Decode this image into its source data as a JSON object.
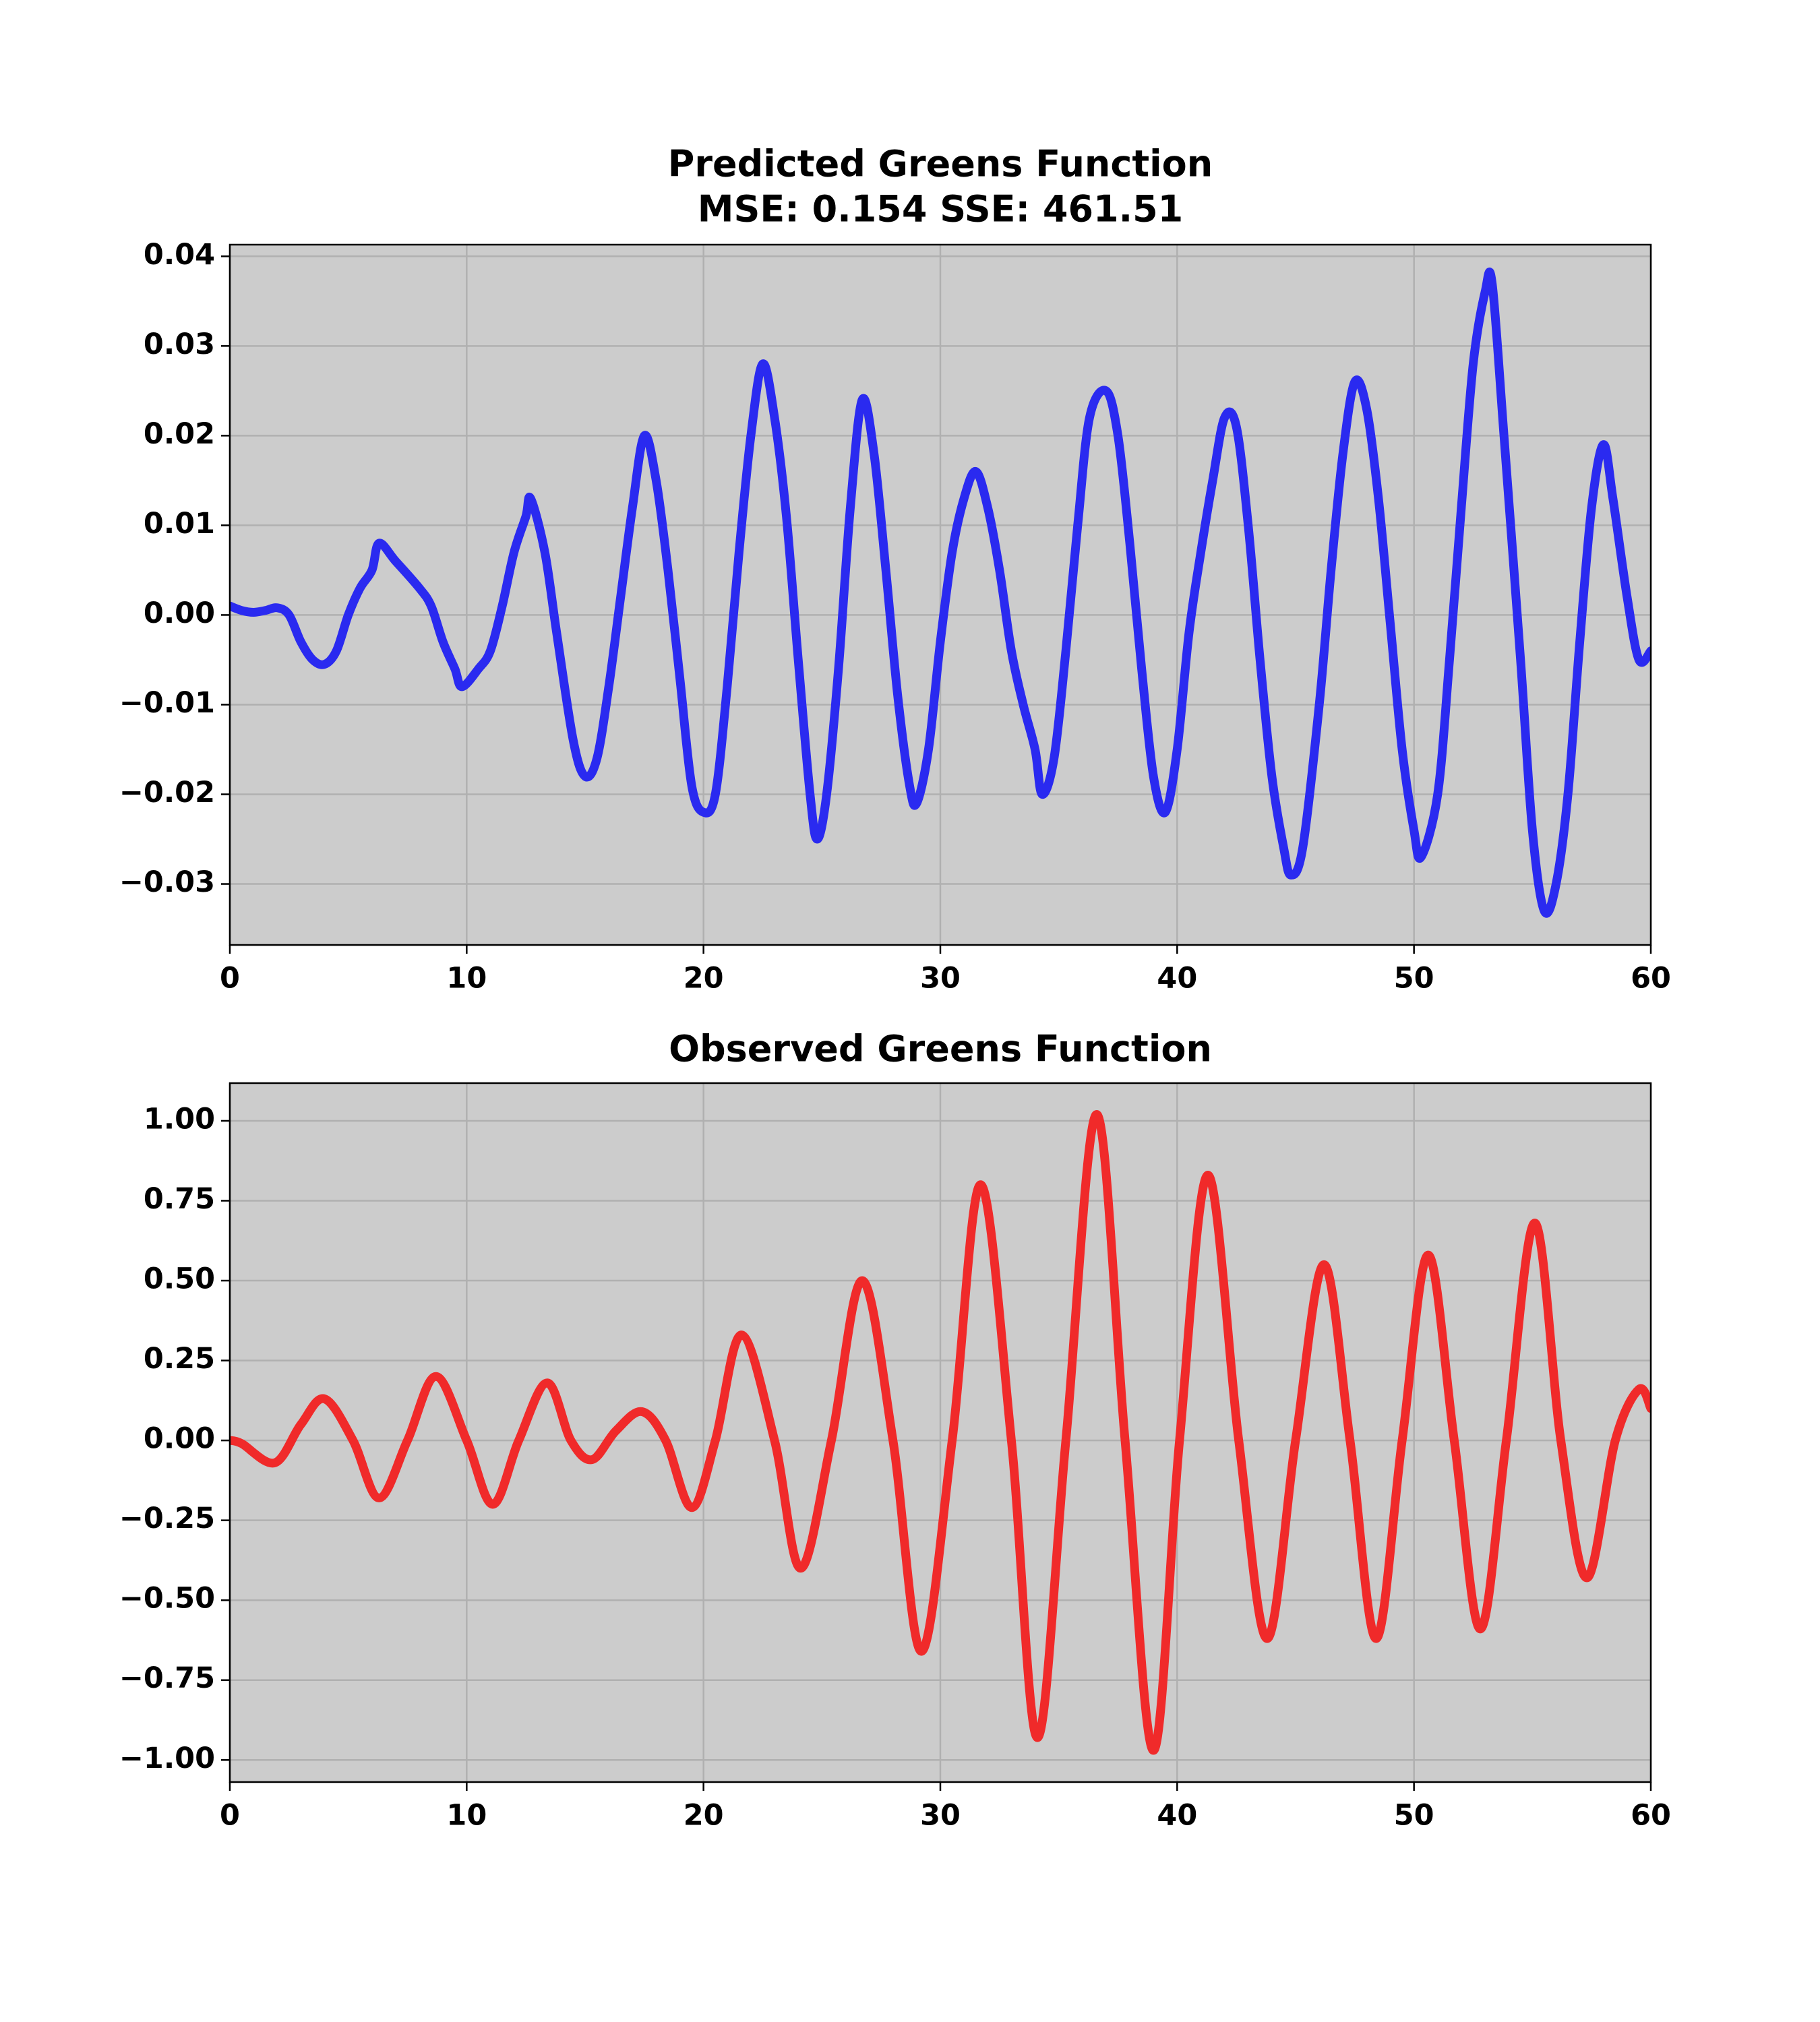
{
  "chart_data": [
    {
      "type": "line",
      "title": "Predicted Greens Function",
      "subtitle": "MSE: 0.154 SSE: 461.51",
      "x": [
        0,
        0.5,
        1,
        1.5,
        2,
        2.5,
        3,
        3.5,
        4,
        4.5,
        5,
        5.5,
        6,
        6.3,
        7,
        8,
        8.5,
        9,
        9.5,
        9.8,
        10.5,
        11,
        11.5,
        12,
        12.5,
        12.7,
        13.3,
        13.8,
        14.5,
        15,
        15.5,
        16,
        16.5,
        17,
        17.5,
        18,
        18.5,
        19,
        19.5,
        20,
        20.5,
        21,
        21.5,
        22,
        22.5,
        23,
        23.5,
        24,
        24.5,
        24.8,
        25.2,
        25.7,
        26.2,
        26.7,
        27.2,
        27.7,
        28.2,
        28.7,
        29,
        29.5,
        30,
        30.5,
        31,
        31.5,
        32,
        32.5,
        33,
        33.5,
        34,
        34.3,
        34.8,
        35.3,
        35.8,
        36.3,
        37,
        37.5,
        38,
        38.5,
        39,
        39.5,
        40,
        40.5,
        41,
        41.5,
        42,
        42.5,
        43,
        43.5,
        44,
        44.5,
        44.8,
        45.3,
        46,
        46.5,
        47,
        47.5,
        48,
        48.5,
        49,
        49.5,
        50,
        50.3,
        51,
        51.5,
        52,
        52.5,
        53,
        53.3,
        53.8,
        54.5,
        55,
        55.5,
        56,
        56.5,
        57,
        57.5,
        58,
        58.4,
        59,
        59.5,
        60
      ],
      "series": [
        {
          "name": "Predicted",
          "color": "#2a2af0",
          "values": [
            0.001,
            0.0005,
            0.0003,
            0.0005,
            0.0008,
            0,
            -0.003,
            -0.005,
            -0.0055,
            -0.004,
            0,
            0.003,
            0.005,
            0.008,
            0.006,
            0.003,
            0.001,
            -0.003,
            -0.006,
            -0.008,
            -0.006,
            -0.004,
            0.001,
            0.007,
            0.011,
            0.013,
            0.007,
            -0.002,
            -0.014,
            -0.018,
            -0.016,
            -0.008,
            0.002,
            0.012,
            0.02,
            0.015,
            0.005,
            -0.007,
            -0.019,
            -0.022,
            -0.02,
            -0.008,
            0.007,
            0.02,
            0.028,
            0.022,
            0.011,
            -0.005,
            -0.02,
            -0.025,
            -0.02,
            -0.006,
            0.012,
            0.024,
            0.018,
            0.005,
            -0.009,
            -0.019,
            -0.021,
            -0.015,
            -0.003,
            0.007,
            0.013,
            0.016,
            0.012,
            0.005,
            -0.004,
            -0.01,
            -0.015,
            -0.02,
            -0.016,
            -0.004,
            0.01,
            0.022,
            0.025,
            0.02,
            0.008,
            -0.006,
            -0.018,
            -0.022,
            -0.015,
            -0.002,
            0.007,
            0.015,
            0.022,
            0.021,
            0.01,
            -0.005,
            -0.018,
            -0.026,
            -0.029,
            -0.026,
            -0.01,
            0.005,
            0.018,
            0.026,
            0.023,
            0.013,
            -0.001,
            -0.015,
            -0.024,
            -0.027,
            -0.02,
            -0.005,
            0.012,
            0.028,
            0.036,
            0.037,
            0.02,
            -0.005,
            -0.024,
            -0.033,
            -0.03,
            -0.02,
            -0.003,
            0.012,
            0.019,
            0.013,
            0.002,
            -0.005,
            -0.004
          ]
        }
      ],
      "xlim": [
        0,
        60
      ],
      "xticks": [
        0,
        10,
        20,
        30,
        40,
        50,
        60
      ],
      "ylim": [
        -0.0368,
        0.0413
      ],
      "yticks": [
        {
          "value": -0.03,
          "label": "−0.03"
        },
        {
          "value": -0.02,
          "label": "−0.02"
        },
        {
          "value": -0.01,
          "label": "−0.01"
        },
        {
          "value": 0,
          "label": "0.00"
        },
        0.01,
        0.02,
        0.03,
        0.04
      ],
      "grid": true
    },
    {
      "type": "line",
      "title": "Observed Greens Function",
      "x": [
        0,
        0.5,
        1.9,
        3,
        4,
        5.2,
        6.3,
        7.5,
        8.7,
        10,
        11.1,
        12.2,
        13.4,
        14.4,
        15.3,
        16.3,
        17.4,
        18.4,
        19.5,
        20.5,
        21.6,
        23,
        24.1,
        25.4,
        26.7,
        28,
        29.2,
        30.5,
        31.7,
        33,
        34.1,
        35.3,
        36.6,
        37.8,
        39,
        40.1,
        41.3,
        42.6,
        43.8,
        45,
        46.2,
        47.3,
        48.4,
        49.5,
        50.6,
        51.7,
        52.8,
        53.9,
        55.1,
        56.2,
        57.3,
        58.5,
        59.5,
        60
      ],
      "series": [
        {
          "name": "Observed",
          "color": "#f02a2a",
          "values": [
            0,
            -0.01,
            -0.07,
            0.05,
            0.13,
            0,
            -0.18,
            0,
            0.2,
            0,
            -0.2,
            0,
            0.18,
            0,
            -0.06,
            0.03,
            0.09,
            0,
            -0.21,
            0,
            0.33,
            0,
            -0.4,
            0,
            0.5,
            0,
            -0.66,
            0,
            0.8,
            0,
            -0.93,
            0,
            1.02,
            0,
            -0.97,
            0,
            0.83,
            0,
            -0.62,
            0,
            0.55,
            0,
            -0.62,
            0,
            0.58,
            0,
            -0.59,
            0,
            0.68,
            0,
            -0.43,
            0,
            0.16,
            0.1
          ]
        }
      ],
      "xlim": [
        0,
        60
      ],
      "xticks": [
        0,
        10,
        20,
        30,
        40,
        50,
        60
      ],
      "ylim": [
        -1.069,
        1.118
      ],
      "yticks": [
        {
          "value": -1,
          "label": "−1.00"
        },
        {
          "value": -0.75,
          "label": "−0.75"
        },
        {
          "value": -0.5,
          "label": "−0.50"
        },
        {
          "value": -0.25,
          "label": "−0.25"
        },
        {
          "value": 0,
          "label": "0.00"
        },
        {
          "value": 0.25,
          "label": "0.25"
        },
        {
          "value": 0.5,
          "label": "0.50"
        },
        0.75,
        {
          "value": 1,
          "label": "1.00"
        }
      ],
      "grid": true
    }
  ]
}
